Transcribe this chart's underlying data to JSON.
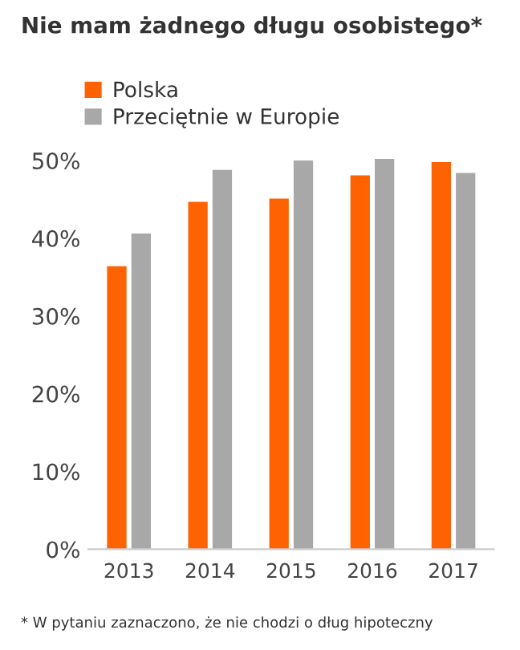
{
  "chart_data": {
    "type": "bar",
    "title": "Nie mam żadnego długu osobistego*",
    "categories": [
      "2013",
      "2014",
      "2015",
      "2016",
      "2017"
    ],
    "series": [
      {
        "name": "Polska",
        "color": "#ff6200",
        "values": [
          36.4,
          44.7,
          45.1,
          48.1,
          49.8
        ]
      },
      {
        "name": "Przeciętnie w Europie",
        "color": "#a8a8a8",
        "values": [
          40.6,
          48.8,
          50.0,
          50.2,
          48.4
        ]
      }
    ],
    "ylim": [
      0,
      51
    ],
    "yticks": [
      {
        "value": 0,
        "label": "0%"
      },
      {
        "value": 10,
        "label": "10%"
      },
      {
        "value": 20,
        "label": "20%"
      },
      {
        "value": 30,
        "label": "30%"
      },
      {
        "value": 40,
        "label": "40%"
      },
      {
        "value": 50,
        "label": "50%"
      }
    ],
    "grid": false,
    "legend": "top left",
    "annotations": [
      "* W pytaniu zaznaczono, że nie chodzi o dług hipoteczny"
    ]
  }
}
